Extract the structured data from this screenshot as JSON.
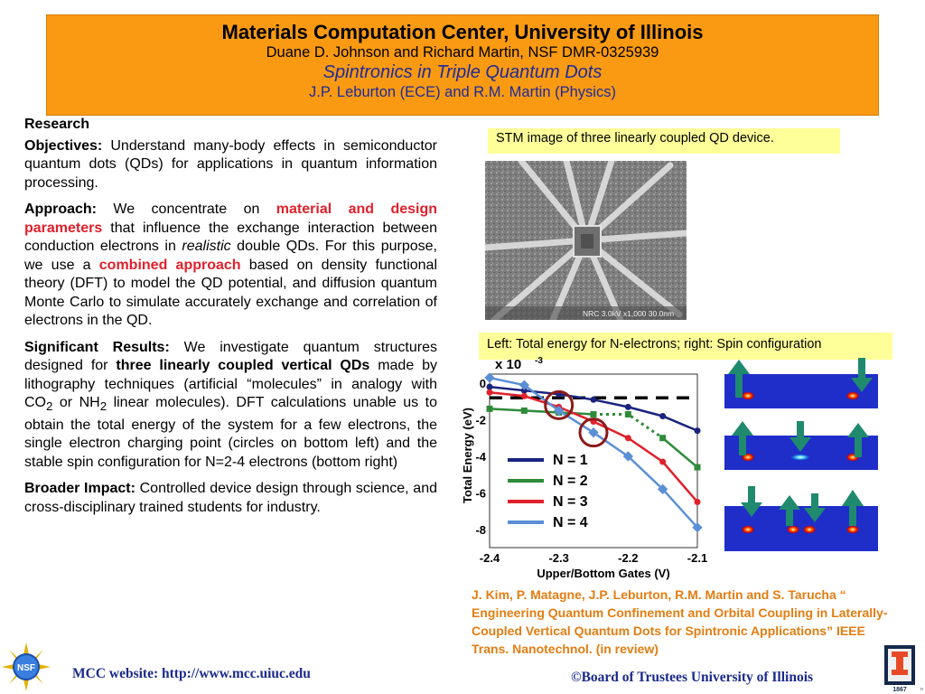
{
  "header": {
    "title": "Materials Computation Center, University of Illinois",
    "authors": "Duane D. Johnson and Richard Martin, NSF DMR-0325939",
    "project": "Spintronics in Triple Quantum Dots",
    "investigators": "J.P. Leburton (ECE) and R.M. Martin (Physics)"
  },
  "research": {
    "heading": "Research",
    "objectives_label": "Objectives:",
    "objectives_text": " Understand many-body effects in semiconductor quantum dots (QDs) for applications in quantum information processing.",
    "approach_label": "Approach:",
    "approach_1": " We concentrate on ",
    "approach_red_1": "material and design parameters",
    "approach_2": " that influence the exchange interaction between conduction electrons in ",
    "approach_italic": "realistic",
    "approach_3": " double QDs. For this purpose, we use a ",
    "approach_red_2": "combined approach",
    "approach_4": " based on density functional theory (DFT) to model the QD potential, and diffusion quantum Monte Carlo to simulate accurately exchange and correlation of electrons in the QD.",
    "results_label": "Significant Results:",
    "results_1": " We investigate quantum structures designed for ",
    "results_bold": "three linearly coupled vertical QDs",
    "results_2": " made by lithography techniques (artificial “molecules” in analogy with CO",
    "results_sub_1": "2",
    "results_3": " or NH",
    "results_sub_2": "2",
    "results_4": " linear molecules). DFT calculations unable us to obtain the total energy of the system for a few electrons, the single electron charging point (circles on bottom left) and the stable spin configuration for N=2-4 electrons (bottom right)",
    "impact_label": "Broader Impact:",
    "impact_text": " Controlled device design through science, and cross-disciplinary trained students for industry."
  },
  "figures": {
    "stm_caption": "STM image of three linearly coupled QD device.",
    "stm_scale_text": "NRC  3.0kV   x1,000  30.0nm",
    "energy_caption": "Left: Total energy for N-electrons; right: Spin configuration"
  },
  "chart_data": {
    "type": "line",
    "xlabel": "Upper/Bottom Gates (V)",
    "ylabel": "Total Energy (eV)",
    "scale_label": "x 10",
    "scale_exp": "-3",
    "xlim": [
      -2.4,
      -2.1
    ],
    "ylim": [
      -9,
      0.5
    ],
    "xticks": [
      "-2.4",
      "-2.3",
      "-2.2",
      "-2.1"
    ],
    "yticks": [
      "0",
      "-2",
      "-4",
      "-6",
      "-8"
    ],
    "xtick_values": [
      -2.4,
      -2.3,
      -2.2,
      -2.1
    ],
    "ytick_values": [
      0,
      -2,
      -4,
      -6,
      -8
    ],
    "dashed_level": -0.8,
    "series": [
      {
        "name": "N = 1",
        "color": "#1a237e",
        "style": "solid",
        "x": [
          -2.4,
          -2.35,
          -2.3,
          -2.25,
          -2.2,
          -2.15,
          -2.1
        ],
        "y": [
          -0.2,
          -0.4,
          -0.6,
          -0.9,
          -1.3,
          -1.8,
          -2.6
        ]
      },
      {
        "name": "N = 2",
        "color": "#2e8b3a",
        "style": "mixed",
        "x": [
          -2.4,
          -2.35,
          -2.3,
          -2.25,
          -2.2,
          -2.15,
          -2.1
        ],
        "y": [
          -1.4,
          -1.5,
          -1.6,
          -1.7,
          -1.7,
          -3.0,
          -4.6
        ]
      },
      {
        "name": "N = 3",
        "color": "#e0212b",
        "style": "solid",
        "x": [
          -2.4,
          -2.35,
          -2.3,
          -2.25,
          -2.2,
          -2.15,
          -2.1
        ],
        "y": [
          -0.5,
          -0.7,
          -1.3,
          -2.1,
          -3.0,
          -4.3,
          -6.5
        ]
      },
      {
        "name": "N = 4",
        "color": "#5b8fd6",
        "style": "solid",
        "x": [
          -2.4,
          -2.35,
          -2.3,
          -2.25,
          -2.2,
          -2.15,
          -2.1
        ],
        "y": [
          0.3,
          -0.1,
          -1.5,
          -2.7,
          -4.0,
          -5.8,
          -7.9
        ]
      }
    ],
    "circles": [
      {
        "x": -2.3,
        "y": -1.2
      },
      {
        "x": -2.25,
        "y": -2.7
      }
    ]
  },
  "reference": "J. Kim, P. Matagne, J.P. Leburton, R.M. Martin and S. Tarucha “ Engineering Quantum Confinement and Orbital Coupling in Laterally-Coupled Vertical Quantum Dots for Spintronic Applications” IEEE Trans. Nanotechnol. (in review)",
  "footer": {
    "website_label": "MCC website:  ",
    "website_url": "http://www.mcc.uiuc.edu",
    "copyright": "©Board of Trustees University of Illinois",
    "nsf_logo_text": "NSF",
    "illinois_logo_text": "1867"
  }
}
